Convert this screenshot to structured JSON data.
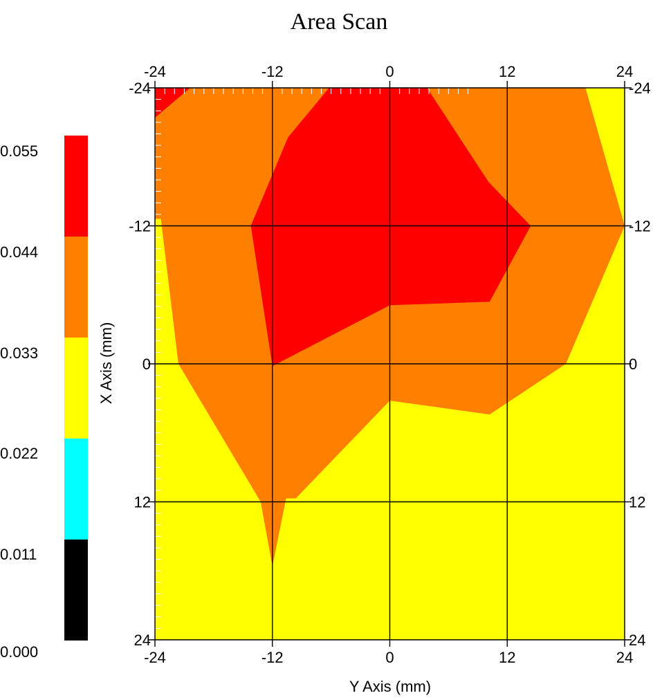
{
  "chart_data": {
    "type": "heatmap",
    "subtype": "filled-contour",
    "title": "Area Scan",
    "xlabel": "Y Axis (mm)",
    "ylabel": "X Axis (mm)",
    "xlim": [
      -24,
      24
    ],
    "ylim": [
      -24,
      24
    ],
    "y_inverted": true,
    "grid": true,
    "x_ticks": [
      "-24",
      "-12",
      "0",
      "12",
      "24"
    ],
    "y_ticks": [
      "-24",
      "-12",
      "0",
      "12",
      "24"
    ],
    "colorbar": {
      "placement": "left",
      "labels": [
        "0.055",
        "0.044",
        "0.033",
        "0.022",
        "0.011",
        "0.000"
      ],
      "bins": [
        {
          "min": 0.0,
          "max": 0.011,
          "color": "#000000"
        },
        {
          "min": 0.011,
          "max": 0.022,
          "color": "#00ffff"
        },
        {
          "min": 0.022,
          "max": 0.033,
          "color": "#ffff00"
        },
        {
          "min": 0.033,
          "max": 0.044,
          "color": "#ff8000"
        },
        {
          "min": 0.044,
          "max": 0.055,
          "color": "#ff0000"
        }
      ]
    },
    "background_color": "#ffff00",
    "regions": [
      {
        "level": "0.033-0.044",
        "color": "#ff8000",
        "boundary": [
          [
            -24,
            -24
          ],
          [
            20,
            -24
          ],
          [
            24,
            -12
          ],
          [
            18,
            0
          ],
          [
            10.2,
            4.4
          ],
          [
            0,
            3.2
          ],
          [
            -9.6,
            11.7
          ],
          [
            -10.6,
            11.7
          ],
          [
            -12,
            17.6
          ],
          [
            -13.2,
            12
          ],
          [
            -21.6,
            0
          ],
          [
            -23.4,
            -12.6
          ],
          [
            -24,
            -12.6
          ]
        ]
      },
      {
        "level": "0.044-0.055",
        "color": "#ff0000",
        "boundary": [
          [
            -6.2,
            -24
          ],
          [
            3.8,
            -24
          ],
          [
            10.1,
            -15.8
          ],
          [
            14.4,
            -12
          ],
          [
            10.2,
            -5.4
          ],
          [
            0,
            -5.1
          ],
          [
            -12,
            0.2
          ],
          [
            -14.2,
            -12
          ],
          [
            -10.4,
            -19.7
          ]
        ]
      },
      {
        "level": "0.044-0.055",
        "color": "#ff0000",
        "boundary": [
          [
            -24,
            -24
          ],
          [
            -20.4,
            -24
          ],
          [
            -24,
            -21.4
          ]
        ]
      }
    ]
  }
}
